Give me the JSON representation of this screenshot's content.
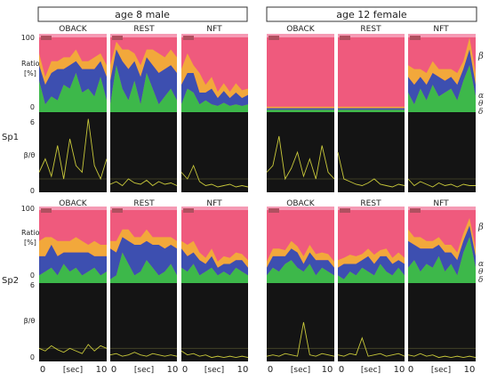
{
  "colors": {
    "beta": "#ef5a7d",
    "beta_light": "#f59ab4",
    "alpha": "#f2a83b",
    "theta": "#3d4fb0",
    "delta": "#3db84a",
    "panel_dark": "#141414",
    "trace": "#c8c83a",
    "marker": "#b05060"
  },
  "groups": [
    {
      "title": "age 8  male"
    },
    {
      "title": "age 12  female"
    }
  ],
  "conditions": [
    "OBACK",
    "REST",
    "NFT"
  ],
  "subjects": [
    {
      "label": "Sp1",
      "ratio_top": "100",
      "ratio_label": "Ratio",
      "ratio_unit": "[%]",
      "ratio_bottom": "0",
      "bt_top": "6",
      "bt_label": "β/θ",
      "bt_bottom": "0"
    },
    {
      "label": "Sp2",
      "ratio_top": "100",
      "ratio_label": "Ratio",
      "ratio_unit": "[%]",
      "ratio_bottom": "0",
      "bt_top": "6",
      "bt_label": "β/θ",
      "bt_bottom": "0"
    }
  ],
  "band_labels": {
    "beta": "β",
    "alpha": "α",
    "theta": "θ",
    "delta": "δ"
  },
  "xaxis": {
    "start": "0",
    "label": "[sec]",
    "end": "10"
  },
  "chart_data": {
    "type": "area",
    "subjects": [
      {
        "name": "Sp1",
        "panels": [
          {
            "group": "age 8  male",
            "condition": "OBACK",
            "delta": [
              40,
              10,
              20,
              15,
              35,
              30,
              50,
              25,
              30,
              20,
              45,
              15
            ],
            "theta": [
              20,
              25,
              30,
              40,
              20,
              30,
              15,
              30,
              25,
              35,
              20,
              30
            ],
            "alpha": [
              15,
              10,
              15,
              10,
              15,
              10,
              15,
              10,
              10,
              15,
              10,
              15
            ],
            "bt": [
              1.5,
              2.5,
              1.2,
              3.5,
              1.0,
              4.0,
              2.0,
              1.5,
              5.5,
              2.0,
              1.0,
              2.5
            ]
          },
          {
            "group": "age 8  male",
            "condition": "REST",
            "delta": [
              10,
              60,
              30,
              15,
              40,
              10,
              50,
              30,
              10,
              20,
              30,
              15
            ],
            "theta": [
              30,
              20,
              35,
              40,
              25,
              35,
              20,
              30,
              40,
              35,
              30,
              35
            ],
            "alpha": [
              20,
              10,
              15,
              25,
              10,
              15,
              10,
              20,
              25,
              15,
              20,
              20
            ],
            "bt": [
              0.6,
              0.8,
              0.5,
              1.0,
              0.7,
              0.6,
              0.9,
              0.5,
              0.8,
              0.6,
              0.7,
              0.5
            ]
          },
          {
            "group": "age 8  male",
            "condition": "NFT",
            "delta": [
              10,
              30,
              25,
              10,
              15,
              10,
              8,
              12,
              8,
              10,
              8,
              10
            ],
            "theta": [
              25,
              20,
              25,
              15,
              10,
              20,
              10,
              15,
              10,
              15,
              10,
              12
            ],
            "alpha": [
              20,
              25,
              10,
              25,
              10,
              15,
              8,
              10,
              8,
              12,
              10,
              8
            ],
            "bt": [
              1.5,
              1.0,
              2.0,
              0.8,
              0.5,
              0.6,
              0.4,
              0.5,
              0.6,
              0.4,
              0.5,
              0.4
            ]
          },
          {
            "group": "age 12  female",
            "condition": "OBACK",
            "delta": [
              3,
              3,
              3,
              3,
              3,
              3,
              3,
              3,
              3,
              3,
              3,
              3
            ],
            "theta": [
              2,
              2,
              2,
              2,
              2,
              2,
              2,
              2,
              2,
              2,
              2,
              2
            ],
            "alpha": [
              2,
              2,
              2,
              2,
              2,
              2,
              2,
              2,
              2,
              2,
              2,
              2
            ],
            "bt": [
              1.5,
              2.0,
              4.2,
              1.0,
              1.8,
              3.0,
              1.2,
              2.5,
              1.0,
              3.5,
              1.5,
              1.0
            ]
          },
          {
            "group": "age 12  female",
            "condition": "REST",
            "delta": [
              3,
              3,
              3,
              3,
              3,
              3,
              3,
              3,
              3,
              3,
              3,
              3
            ],
            "theta": [
              2,
              2,
              2,
              2,
              2,
              2,
              2,
              2,
              2,
              2,
              2,
              2
            ],
            "alpha": [
              2,
              2,
              2,
              2,
              2,
              2,
              2,
              2,
              2,
              2,
              2,
              2
            ],
            "bt": [
              3.0,
              1.0,
              0.8,
              0.6,
              0.5,
              0.7,
              1.0,
              0.6,
              0.5,
              0.4,
              0.6,
              0.5
            ]
          },
          {
            "group": "age 12  female",
            "condition": "NFT",
            "delta": [
              25,
              10,
              30,
              15,
              35,
              20,
              25,
              30,
              15,
              40,
              60,
              20
            ],
            "theta": [
              20,
              25,
              15,
              20,
              15,
              25,
              15,
              15,
              20,
              15,
              20,
              15
            ],
            "alpha": [
              15,
              20,
              10,
              15,
              15,
              10,
              15,
              10,
              15,
              10,
              15,
              15
            ],
            "bt": [
              1.0,
              0.5,
              0.8,
              0.6,
              0.4,
              0.7,
              0.5,
              0.6,
              0.4,
              0.6,
              0.5,
              0.5
            ]
          }
        ]
      },
      {
        "name": "Sp2",
        "panels": [
          {
            "group": "age 8  male",
            "condition": "OBACK",
            "delta": [
              10,
              15,
              20,
              10,
              25,
              15,
              20,
              10,
              15,
              20,
              10,
              15
            ],
            "theta": [
              25,
              20,
              30,
              25,
              15,
              25,
              20,
              30,
              25,
              15,
              25,
              20
            ],
            "alpha": [
              20,
              25,
              10,
              20,
              15,
              15,
              20,
              15,
              10,
              20,
              15,
              15
            ],
            "bt": [
              1.0,
              0.8,
              1.2,
              0.9,
              0.7,
              1.0,
              0.8,
              0.6,
              1.3,
              0.8,
              1.2,
              1.0
            ]
          },
          {
            "group": "age 8  male",
            "condition": "REST",
            "delta": [
              5,
              10,
              40,
              25,
              10,
              15,
              30,
              20,
              10,
              15,
              25,
              10
            ],
            "theta": [
              40,
              30,
              20,
              30,
              40,
              35,
              25,
              30,
              40,
              30,
              25,
              35
            ],
            "alpha": [
              10,
              15,
              10,
              15,
              10,
              10,
              15,
              10,
              10,
              15,
              10,
              10
            ],
            "bt": [
              0.5,
              0.6,
              0.4,
              0.5,
              0.7,
              0.5,
              0.4,
              0.6,
              0.5,
              0.4,
              0.5,
              0.4
            ]
          },
          {
            "group": "age 8  male",
            "condition": "NFT",
            "delta": [
              20,
              15,
              25,
              10,
              15,
              20,
              10,
              15,
              10,
              20,
              15,
              10
            ],
            "theta": [
              25,
              20,
              15,
              20,
              10,
              15,
              10,
              10,
              15,
              10,
              15,
              10
            ],
            "alpha": [
              10,
              15,
              15,
              10,
              8,
              10,
              8,
              10,
              8,
              10,
              8,
              10
            ],
            "bt": [
              0.8,
              0.5,
              0.6,
              0.4,
              0.5,
              0.3,
              0.4,
              0.3,
              0.4,
              0.3,
              0.4,
              0.3
            ]
          },
          {
            "group": "age 12  female",
            "condition": "OBACK",
            "delta": [
              10,
              20,
              15,
              25,
              30,
              20,
              15,
              25,
              10,
              20,
              15,
              10
            ],
            "theta": [
              10,
              15,
              20,
              10,
              15,
              20,
              10,
              15,
              20,
              10,
              15,
              10
            ],
            "alpha": [
              8,
              10,
              10,
              8,
              10,
              8,
              10,
              10,
              8,
              10,
              8,
              8
            ],
            "bt": [
              0.4,
              0.5,
              0.4,
              0.6,
              0.5,
              0.4,
              3.0,
              0.5,
              0.4,
              0.6,
              0.5,
              0.4
            ]
          },
          {
            "group": "age 12  female",
            "condition": "REST",
            "delta": [
              10,
              5,
              15,
              10,
              20,
              15,
              10,
              25,
              15,
              10,
              20,
              10
            ],
            "theta": [
              10,
              20,
              10,
              15,
              10,
              20,
              15,
              10,
              20,
              15,
              10,
              15
            ],
            "alpha": [
              10,
              8,
              12,
              10,
              8,
              10,
              12,
              8,
              10,
              8,
              10,
              8
            ],
            "bt": [
              0.5,
              0.4,
              0.6,
              0.5,
              1.8,
              0.4,
              0.5,
              0.6,
              0.4,
              0.5,
              0.6,
              0.4
            ]
          },
          {
            "group": "age 12  female",
            "condition": "NFT",
            "delta": [
              20,
              30,
              15,
              25,
              20,
              35,
              15,
              25,
              10,
              40,
              60,
              20
            ],
            "theta": [
              35,
              20,
              30,
              20,
              25,
              15,
              25,
              15,
              20,
              15,
              15,
              15
            ],
            "alpha": [
              15,
              10,
              15,
              10,
              10,
              10,
              10,
              10,
              10,
              10,
              10,
              10
            ],
            "bt": [
              0.5,
              0.4,
              0.6,
              0.4,
              0.5,
              0.3,
              0.4,
              0.3,
              0.4,
              0.3,
              0.4,
              0.3
            ]
          }
        ]
      }
    ]
  }
}
